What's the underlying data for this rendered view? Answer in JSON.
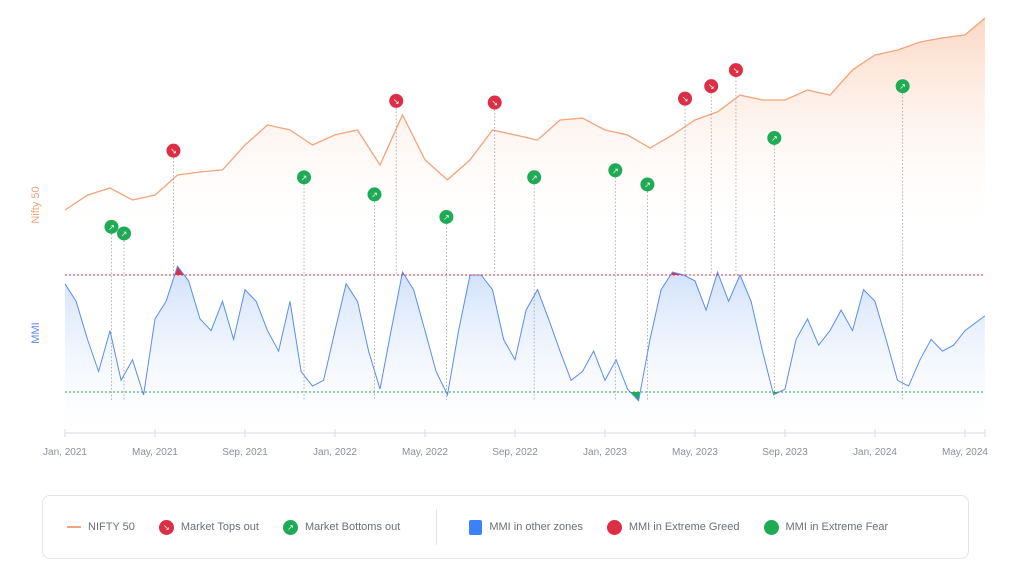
{
  "chart_data": {
    "type": "line",
    "colors": {
      "nifty": "#f4a37b",
      "mmi": "#5b8def",
      "greed": "#dc2f45",
      "fear": "#1faa55",
      "guide": "#9aa0a6"
    },
    "x_axis": {
      "ticks": [
        "Jan, 2021",
        "May, 2021",
        "Sep, 2021",
        "Jan, 2022",
        "May, 2022",
        "Sep, 2022",
        "Jan, 2023",
        "May, 2023",
        "Sep, 2023",
        "Jan, 2024",
        "May, 2024"
      ],
      "range": [
        "2021-01-01",
        "2024-05-28"
      ]
    },
    "nifty": {
      "axis_label": "Nifty 50",
      "x": [
        "2021-01-01",
        "2021-02-01",
        "2021-03-01",
        "2021-04-01",
        "2021-05-01",
        "2021-06-01",
        "2021-07-01",
        "2021-08-01",
        "2021-09-01",
        "2021-10-01",
        "2021-11-01",
        "2021-12-01",
        "2022-01-01",
        "2022-02-01",
        "2022-03-01",
        "2022-04-01",
        "2022-05-01",
        "2022-06-01",
        "2022-07-01",
        "2022-08-01",
        "2022-09-01",
        "2022-10-01",
        "2022-11-01",
        "2022-12-01",
        "2023-01-01",
        "2023-02-01",
        "2023-03-01",
        "2023-04-01",
        "2023-05-01",
        "2023-06-01",
        "2023-07-01",
        "2023-08-01",
        "2023-09-01",
        "2023-10-01",
        "2023-11-01",
        "2023-12-01",
        "2024-01-01",
        "2024-02-01",
        "2024-03-01",
        "2024-04-01",
        "2024-05-01",
        "2024-05-28"
      ],
      "y": [
        14000,
        14700,
        15030,
        14470,
        14700,
        15640,
        15780,
        15880,
        17050,
        17990,
        17750,
        17050,
        17520,
        17750,
        16110,
        18460,
        16350,
        15410,
        16350,
        17750,
        17520,
        17280,
        18220,
        18310,
        17750,
        17520,
        16910,
        17520,
        18220,
        18600,
        19390,
        19160,
        19160,
        19630,
        19390,
        20570,
        21270,
        21500,
        21880,
        22070,
        22210,
        23000
      ]
    },
    "mmi": {
      "axis_label": "MMI",
      "extreme_greed_threshold": 70,
      "extreme_fear_threshold": 30,
      "x": [
        "2021-01-01",
        "2021-01-16",
        "2021-02-01",
        "2021-02-16",
        "2021-03-01",
        "2021-03-16",
        "2021-04-01",
        "2021-04-16",
        "2021-05-01",
        "2021-05-16",
        "2021-06-01",
        "2021-06-16",
        "2021-07-01",
        "2021-07-16",
        "2021-08-01",
        "2021-08-16",
        "2021-09-01",
        "2021-09-16",
        "2021-10-01",
        "2021-10-16",
        "2021-11-01",
        "2021-11-16",
        "2021-12-01",
        "2021-12-16",
        "2022-01-01",
        "2022-01-16",
        "2022-02-01",
        "2022-02-16",
        "2022-03-01",
        "2022-03-16",
        "2022-04-01",
        "2022-04-16",
        "2022-05-01",
        "2022-05-16",
        "2022-06-01",
        "2022-06-16",
        "2022-07-01",
        "2022-07-16",
        "2022-08-01",
        "2022-08-16",
        "2022-09-01",
        "2022-09-16",
        "2022-10-01",
        "2022-10-16",
        "2022-11-01",
        "2022-11-16",
        "2022-12-01",
        "2022-12-16",
        "2023-01-01",
        "2023-01-16",
        "2023-02-01",
        "2023-02-16",
        "2023-03-01",
        "2023-03-16",
        "2023-04-01",
        "2023-04-16",
        "2023-05-01",
        "2023-05-16",
        "2023-06-01",
        "2023-06-16",
        "2023-07-01",
        "2023-07-16",
        "2023-08-01",
        "2023-08-16",
        "2023-09-01",
        "2023-09-16",
        "2023-10-01",
        "2023-10-16",
        "2023-11-01",
        "2023-11-16",
        "2023-12-01",
        "2023-12-16",
        "2024-01-01",
        "2024-01-16",
        "2024-02-01",
        "2024-02-16",
        "2024-03-01",
        "2024-03-16",
        "2024-04-01",
        "2024-04-16",
        "2024-05-01",
        "2024-05-28"
      ],
      "y": [
        67,
        61,
        48,
        37,
        51,
        34,
        41,
        29,
        55,
        61,
        73,
        68,
        55,
        51,
        61,
        48,
        65,
        61,
        51,
        44,
        61,
        37,
        32,
        34,
        51,
        67,
        61,
        44,
        31,
        51,
        71,
        65,
        51,
        37,
        29,
        51,
        70,
        70,
        65,
        48,
        41,
        58,
        65,
        55,
        44,
        34,
        37,
        44,
        34,
        41,
        31,
        27,
        48,
        65,
        71,
        70,
        68,
        58,
        71,
        61,
        70,
        61,
        44,
        29,
        31,
        48,
        55,
        46,
        51,
        58,
        51,
        65,
        61,
        48,
        34,
        32,
        41,
        48,
        44,
        46,
        51,
        56
      ]
    },
    "market_tops": [
      "2021-05-26",
      "2022-03-23",
      "2022-08-04",
      "2023-04-18",
      "2023-05-23",
      "2023-06-26"
    ],
    "market_bottoms": [
      "2021-03-03",
      "2021-03-20",
      "2021-11-20",
      "2022-02-24",
      "2022-05-30",
      "2022-09-27",
      "2023-01-15",
      "2023-02-28",
      "2023-08-17",
      "2024-02-08"
    ],
    "legend_placement": "bottom",
    "grid": false
  },
  "legend": {
    "nifty": "NIFTY 50",
    "tops": "Market Tops out",
    "bottoms": "Market Bottoms out",
    "other": "MMI in other zones",
    "greed": "MMI in Extreme Greed",
    "fear": "MMI in Extreme Fear"
  }
}
